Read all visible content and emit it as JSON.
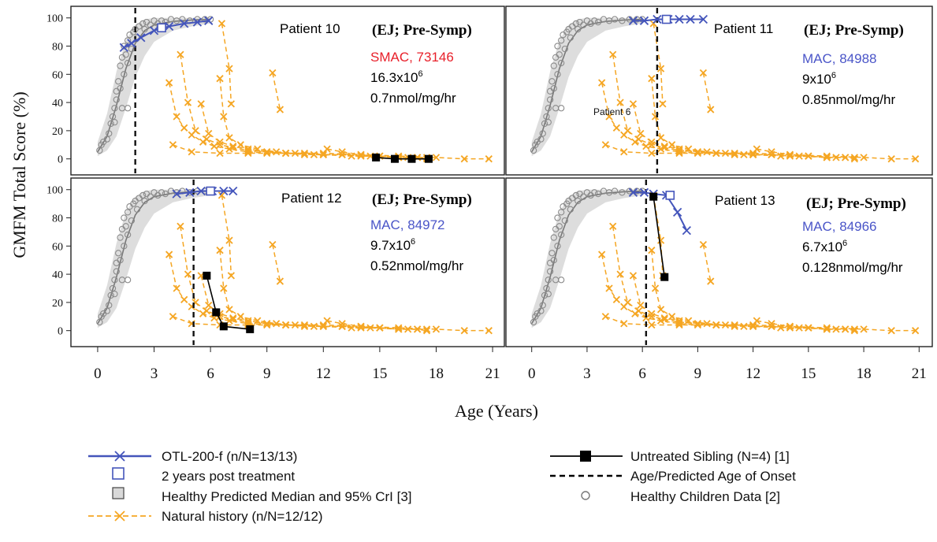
{
  "axes": {
    "ylabel": "GMFM Total Score (%)",
    "xlabel": "Age (Years)",
    "x_ticks": [
      "0",
      "3",
      "6",
      "9",
      "12",
      "15",
      "18",
      "21"
    ],
    "y_ticks": [
      "0",
      "20",
      "40",
      "60",
      "80",
      "100"
    ]
  },
  "annotation_patient6": "Patient 6",
  "legend": {
    "otl": "OTL-200-f (n/N=13/13)",
    "post2": "2 years post treatment",
    "healthy_band": "Healthy Predicted Median and 95% CrI [3]",
    "natural": "Natural history (n/N=12/12)",
    "sibling": "Untreated Sibling (N=4) [1]",
    "onset": "Age/Predicted Age of Onset",
    "healthy_data": "Healthy Children Data [2]"
  },
  "colors": {
    "otl": "#4455bb",
    "natural": "#f5a623",
    "sibling": "#000000",
    "healthy": "#8a8a8a",
    "band": "#d9d9d9",
    "smac_text": "#e8202a",
    "mac_text": "#4a55c8"
  },
  "chart_data": [
    {
      "type": "line",
      "panel": "Patient 10",
      "title": "Patient 10",
      "info": {
        "tag": "(EJ; Pre-Symp)",
        "line1": "SMAC, 73146",
        "line1_kind": "smac",
        "dose_base": "16.3x10",
        "dose_exp": "6",
        "line3": "0.7nmol/mg/hr"
      },
      "xlim": [
        -0.5,
        21.5
      ],
      "ylim": [
        -8,
        106
      ],
      "onset_age": 2.0,
      "otl": [
        [
          1.4,
          79
        ],
        [
          1.8,
          82
        ],
        [
          2.3,
          86
        ],
        [
          3.0,
          91
        ],
        [
          3.8,
          94
        ],
        [
          4.6,
          96
        ],
        [
          5.3,
          97
        ],
        [
          5.9,
          98
        ]
      ],
      "post2": [
        3.4,
        93
      ],
      "sibling": [
        [
          14.8,
          1
        ],
        [
          15.8,
          0
        ],
        [
          16.7,
          0
        ],
        [
          17.6,
          0
        ]
      ]
    },
    {
      "type": "line",
      "panel": "Patient 11",
      "title": "Patient 11",
      "info": {
        "tag": "(EJ; Pre-Symp)",
        "line1": "MAC, 84988",
        "line1_kind": "mac",
        "dose_base": "9x10",
        "dose_exp": "6",
        "line3": "0.85nmol/mg/hr"
      },
      "xlim": [
        -0.5,
        21.5
      ],
      "ylim": [
        -8,
        106
      ],
      "onset_age": 6.8,
      "otl": [
        [
          5.5,
          98
        ],
        [
          6.1,
          98
        ],
        [
          6.8,
          99
        ],
        [
          7.4,
          99
        ],
        [
          8.0,
          99
        ],
        [
          8.6,
          99
        ],
        [
          9.3,
          99
        ]
      ],
      "post2": [
        7.3,
        99
      ],
      "sibling": []
    },
    {
      "type": "line",
      "panel": "Patient 12",
      "title": "Patient 12",
      "info": {
        "tag": "(EJ; Pre-Symp)",
        "line1": "MAC, 84972",
        "line1_kind": "mac",
        "dose_base": "9.7x10",
        "dose_exp": "6",
        "line3": "0.52nmol/mg/hr"
      },
      "xlim": [
        -0.5,
        21.5
      ],
      "ylim": [
        -8,
        106
      ],
      "onset_age": 5.1,
      "otl": [
        [
          4.2,
          97
        ],
        [
          4.9,
          98
        ],
        [
          5.5,
          99
        ],
        [
          6.1,
          99
        ],
        [
          6.7,
          99
        ],
        [
          7.2,
          99
        ]
      ],
      "post2": [
        6.0,
        99
      ],
      "sibling": [
        [
          5.8,
          39
        ],
        [
          6.3,
          13
        ],
        [
          6.7,
          3
        ],
        [
          8.1,
          1
        ]
      ]
    },
    {
      "type": "line",
      "panel": "Patient 13",
      "title": "Patient 13",
      "info": {
        "tag": "(EJ; Pre-Symp)",
        "line1": "MAC, 84966",
        "line1_kind": "mac",
        "dose_base": "6.7x10",
        "dose_exp": "6",
        "line3": "0.128nmol/mg/hr"
      },
      "xlim": [
        -0.5,
        21.5
      ],
      "ylim": [
        -8,
        106
      ],
      "onset_age": 6.2,
      "otl": [
        [
          5.5,
          98
        ],
        [
          6.1,
          98
        ],
        [
          6.6,
          97
        ],
        [
          7.3,
          96
        ],
        [
          7.9,
          84
        ],
        [
          8.4,
          71
        ]
      ],
      "post2": [
        7.5,
        96
      ],
      "sibling": [
        [
          6.6,
          95
        ],
        [
          7.2,
          38
        ]
      ]
    }
  ],
  "shared_series": {
    "healthy_median": [
      [
        0,
        5
      ],
      [
        0.5,
        16
      ],
      [
        1,
        38
      ],
      [
        1.5,
        64
      ],
      [
        2,
        82
      ],
      [
        2.5,
        91
      ],
      [
        3,
        95
      ],
      [
        4,
        97.5
      ],
      [
        5,
        98.5
      ],
      [
        6,
        99
      ]
    ],
    "healthy_band_upper": [
      [
        0,
        12
      ],
      [
        0.5,
        32
      ],
      [
        1,
        62
      ],
      [
        1.5,
        84
      ],
      [
        2,
        95
      ],
      [
        2.5,
        99
      ],
      [
        3,
        100
      ],
      [
        6,
        100
      ]
    ],
    "healthy_band_lower": [
      [
        0,
        2
      ],
      [
        0.5,
        6
      ],
      [
        1,
        16
      ],
      [
        1.5,
        36
      ],
      [
        2,
        58
      ],
      [
        2.5,
        73
      ],
      [
        3,
        83
      ],
      [
        4,
        91
      ],
      [
        5,
        94
      ],
      [
        6,
        96
      ]
    ],
    "healthy_points": [
      [
        0.1,
        6
      ],
      [
        0.2,
        10
      ],
      [
        0.3,
        12
      ],
      [
        0.5,
        14
      ],
      [
        0.6,
        18
      ],
      [
        0.7,
        25
      ],
      [
        0.8,
        30
      ],
      [
        0.9,
        36
      ],
      [
        1.0,
        42
      ],
      [
        1.0,
        48
      ],
      [
        1.1,
        55
      ],
      [
        1.2,
        50
      ],
      [
        1.2,
        66
      ],
      [
        1.3,
        72
      ],
      [
        1.4,
        60
      ],
      [
        1.4,
        80
      ],
      [
        1.5,
        74
      ],
      [
        1.6,
        68
      ],
      [
        1.6,
        84
      ],
      [
        1.7,
        88
      ],
      [
        1.8,
        78
      ],
      [
        1.9,
        90
      ],
      [
        2.0,
        92
      ],
      [
        2.1,
        86
      ],
      [
        2.2,
        94
      ],
      [
        2.4,
        96
      ],
      [
        2.5,
        92
      ],
      [
        2.6,
        97
      ],
      [
        2.8,
        95
      ],
      [
        3.0,
        98
      ],
      [
        3.2,
        96
      ],
      [
        3.4,
        98
      ],
      [
        3.6,
        97
      ],
      [
        3.9,
        99
      ],
      [
        4.2,
        98
      ],
      [
        4.5,
        99
      ],
      [
        4.9,
        98
      ],
      [
        5.3,
        99
      ],
      [
        5.7,
        99
      ],
      [
        6.0,
        99
      ],
      [
        1.3,
        36
      ],
      [
        1.6,
        36
      ],
      [
        0.9,
        26
      ]
    ],
    "natural_history": [
      [
        [
          3.8,
          54
        ],
        [
          4.2,
          30
        ],
        [
          4.6,
          22
        ],
        [
          5.0,
          17
        ],
        [
          5.6,
          12
        ],
        [
          6.2,
          9
        ],
        [
          7.0,
          7
        ],
        [
          8.0,
          5
        ],
        [
          9.0,
          4
        ],
        [
          10.0,
          4
        ],
        [
          11.0,
          3
        ]
      ],
      [
        [
          4.4,
          74
        ],
        [
          4.8,
          40
        ],
        [
          5.2,
          20
        ],
        [
          5.8,
          14
        ],
        [
          6.5,
          10
        ],
        [
          7.2,
          8
        ],
        [
          8.0,
          6
        ],
        [
          9.0,
          5
        ],
        [
          10.0,
          4
        ],
        [
          11.0,
          4
        ],
        [
          12.0,
          3
        ],
        [
          13.0,
          3
        ],
        [
          14.0,
          2
        ],
        [
          15.0,
          2
        ],
        [
          16.0,
          1
        ],
        [
          17.0,
          1
        ]
      ],
      [
        [
          5.5,
          39
        ],
        [
          5.9,
          18
        ],
        [
          6.5,
          12
        ],
        [
          7.2,
          9
        ],
        [
          8.0,
          7
        ],
        [
          9.0,
          5
        ],
        [
          10.0,
          4
        ],
        [
          11.5,
          3
        ],
        [
          13.0,
          3
        ],
        [
          14.5,
          2
        ],
        [
          16.0,
          1
        ],
        [
          17.5,
          1
        ]
      ],
      [
        [
          6.5,
          57
        ],
        [
          6.7,
          30
        ],
        [
          7.0,
          15
        ],
        [
          7.6,
          10
        ],
        [
          8.5,
          7
        ],
        [
          9.5,
          5
        ],
        [
          10.5,
          4
        ],
        [
          12.0,
          3
        ],
        [
          13.5,
          2
        ],
        [
          15.0,
          2
        ],
        [
          16.5,
          1
        ]
      ],
      [
        [
          6.6,
          96
        ],
        [
          7.0,
          64
        ],
        [
          7.1,
          39
        ]
      ],
      [
        [
          9.3,
          61
        ],
        [
          9.7,
          35
        ]
      ],
      [
        [
          4.0,
          10
        ],
        [
          5.0,
          5
        ],
        [
          6.5,
          4
        ],
        [
          8.0,
          4
        ],
        [
          10.0,
          4
        ],
        [
          12.0,
          4
        ],
        [
          14.0,
          3
        ],
        [
          16.0,
          2
        ],
        [
          18.0,
          1
        ],
        [
          19.5,
          0
        ],
        [
          20.8,
          0
        ]
      ],
      [
        [
          12.2,
          7
        ],
        [
          13.0,
          5
        ],
        [
          14.0,
          3
        ],
        [
          15.0,
          2
        ],
        [
          16.0,
          1
        ],
        [
          17.0,
          1
        ],
        [
          17.5,
          0
        ]
      ]
    ]
  }
}
